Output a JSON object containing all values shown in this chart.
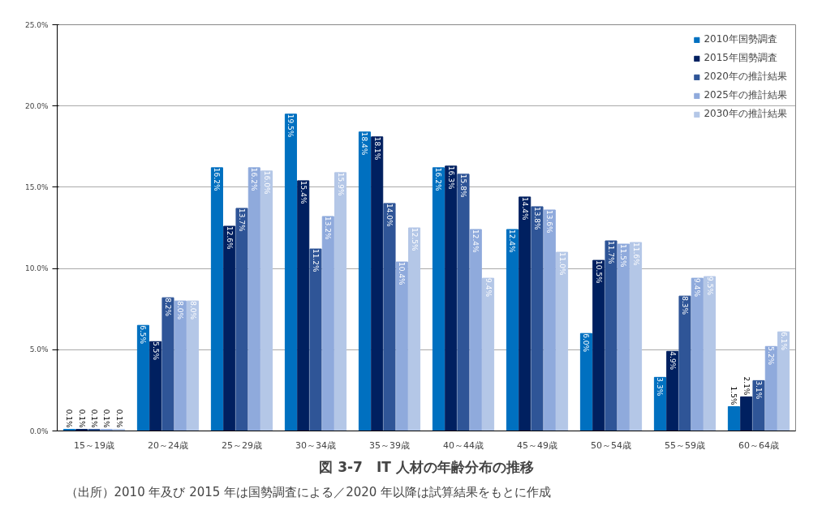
{
  "chart_data": {
    "type": "bar",
    "title": "図 3-7　IT 人材の年齢分布の推移",
    "categories": [
      "15～19歳",
      "20～24歳",
      "25～29歳",
      "30～34歳",
      "35～39歳",
      "40～44歳",
      "45～49歳",
      "50～54歳",
      "55～59歳",
      "60～64歳"
    ],
    "series": [
      {
        "name": "2010年国勢調査",
        "color": "#0070c0",
        "values": [
          0.1,
          6.5,
          16.2,
          19.5,
          18.4,
          16.2,
          12.4,
          6.0,
          3.3,
          1.5
        ],
        "value_labels": [
          "0.1%",
          "6.5%",
          "16.2%",
          "19.5%",
          "18.4%",
          "16.2%",
          "12.4%",
          "6.0%",
          "3.3%",
          "1.5%"
        ]
      },
      {
        "name": "2015年国勢調査",
        "color": "#002060",
        "values": [
          0.1,
          5.5,
          12.6,
          15.4,
          18.1,
          16.3,
          14.4,
          10.5,
          4.9,
          2.1
        ],
        "value_labels": [
          "0.1%",
          "5.5%",
          "12.6%",
          "15.4%",
          "18.1%",
          "16.3%",
          "14.4%",
          "10.5%",
          "4.9%",
          "2.1%"
        ]
      },
      {
        "name": "2020年の推計結果",
        "color": "#2f5597",
        "values": [
          0.1,
          8.2,
          13.7,
          11.2,
          14.0,
          15.8,
          13.8,
          11.7,
          8.3,
          3.1
        ],
        "value_labels": [
          "0.1%",
          "8.2%",
          "13.7%",
          "11.2%",
          "14.0%",
          "15.8%",
          "13.8%",
          "11.7%",
          "8.3%",
          "3.1%"
        ]
      },
      {
        "name": "2025年の推計結果",
        "color": "#8faadc",
        "values": [
          0.1,
          8.0,
          16.2,
          13.2,
          10.4,
          12.4,
          13.6,
          11.5,
          9.4,
          5.2
        ],
        "value_labels": [
          "0.1%",
          "8.0%",
          "16.2%",
          "13.2%",
          "10.4%",
          "12.4%",
          "13.6%",
          "11.5%",
          "9.4%",
          "5.2%"
        ]
      },
      {
        "name": "2030年の推計結果",
        "color": "#b4c7e7",
        "values": [
          0.1,
          8.0,
          16.0,
          15.9,
          12.5,
          9.4,
          11.0,
          11.6,
          9.5,
          6.1
        ],
        "value_labels": [
          "0.1%",
          "8.0%",
          "16.0%",
          "15.9%",
          "12.5%",
          "9.4%",
          "11.0%",
          "11.6%",
          "9.5%",
          "6.1%"
        ]
      }
    ],
    "ylim": [
      0,
      25
    ],
    "yticks": [
      {
        "value": 0,
        "label": "0.0%"
      },
      {
        "value": 5,
        "label": "5.0%"
      },
      {
        "value": 10,
        "label": "10.0%"
      },
      {
        "value": 15,
        "label": "15.0%"
      },
      {
        "value": 20,
        "label": "20.0%"
      },
      {
        "value": 25,
        "label": "25.0%"
      }
    ],
    "grid": "y",
    "legend": "top right",
    "annotations": [
      "（出所）2010 年及び 2015 年は国勢調査による／2020 年以降は試算結果をもとに作成"
    ]
  }
}
